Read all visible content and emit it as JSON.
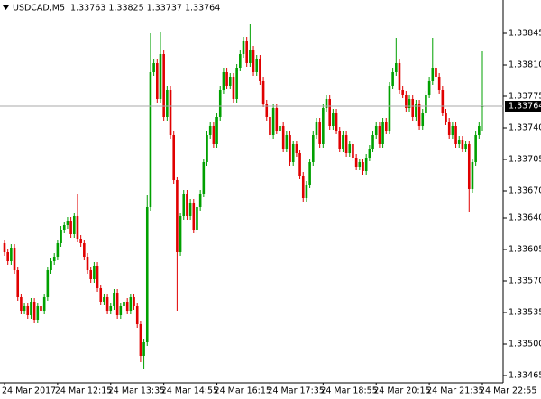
{
  "chart_data": {
    "type": "candlestick",
    "title": "USDCAD,M5  1.33763 1.33825 1.33737 1.33764",
    "up_color": "#00a000",
    "down_color": "#e00000",
    "ylim": [
      1.33457,
      1.33882
    ],
    "yticks": [
      1.33845,
      {
        "value": 1.3381,
        "label": "1.33810"
      },
      1.33775,
      {
        "value": 1.3374,
        "label": "1.33740"
      },
      1.33705,
      {
        "value": 1.3367,
        "label": "1.33670"
      },
      {
        "value": 1.3364,
        "label": "1.33640"
      },
      1.33605,
      {
        "value": 1.3357,
        "label": "1.33570"
      },
      1.33535,
      {
        "value": 1.335,
        "label": "1.33500"
      },
      1.33465
    ],
    "last_price": 1.33764,
    "categories": [
      "24 Mar 2017",
      null,
      null,
      null,
      null,
      null,
      null,
      null,
      null,
      null,
      null,
      null,
      null,
      null,
      null,
      null,
      "24 Mar 12:15",
      null,
      null,
      null,
      null,
      null,
      null,
      null,
      null,
      null,
      null,
      null,
      null,
      null,
      null,
      null,
      "24 Mar 13:35",
      null,
      null,
      null,
      null,
      null,
      null,
      null,
      null,
      null,
      null,
      null,
      null,
      null,
      null,
      null,
      "24 Mar 14:55",
      null,
      null,
      null,
      null,
      null,
      null,
      null,
      null,
      null,
      null,
      null,
      null,
      null,
      null,
      null,
      "24 Mar 16:15",
      null,
      null,
      null,
      null,
      null,
      null,
      null,
      null,
      null,
      null,
      null,
      null,
      null,
      null,
      null,
      "24 Mar 17:35",
      null,
      null,
      null,
      null,
      null,
      null,
      null,
      null,
      null,
      null,
      null,
      null,
      null,
      null,
      null,
      "24 Mar 18:55",
      null,
      null,
      null,
      null,
      null,
      null,
      null,
      null,
      null,
      null,
      null,
      null,
      null,
      null,
      null,
      "24 Mar 20:15",
      null,
      null,
      null,
      null,
      null,
      null,
      null,
      null,
      null,
      null,
      null,
      null,
      null,
      null,
      null,
      "24 Mar 21:35",
      null,
      null,
      null,
      null,
      null,
      null,
      null,
      null,
      null,
      null,
      null,
      null,
      null,
      null,
      null,
      "24 Mar 22:55"
    ],
    "open": [
      1.33612,
      1.33602,
      1.33592,
      1.33607,
      1.33582,
      1.33552,
      1.33537,
      1.33542,
      1.33532,
      1.33547,
      1.33527,
      1.33542,
      1.33537,
      1.33552,
      1.33582,
      1.33592,
      1.33597,
      1.33612,
      1.33627,
      1.33632,
      1.33637,
      1.33622,
      1.33642,
      1.33617,
      1.33612,
      1.33597,
      1.33582,
      1.33572,
      1.33587,
      1.33562,
      1.33547,
      1.33552,
      1.33537,
      1.33542,
      1.33557,
      1.33532,
      1.33542,
      1.33547,
      1.33537,
      1.33552,
      1.33542,
      1.33522,
      1.33487,
      1.33502,
      1.33652,
      1.33802,
      1.33812,
      1.33772,
      1.33822,
      1.33752,
      1.33782,
      1.33732,
      1.33682,
      1.33602,
      1.33642,
      1.33667,
      1.33642,
      1.33657,
      1.33627,
      1.33652,
      1.33667,
      1.33702,
      1.33732,
      1.33742,
      1.33722,
      1.33752,
      1.33782,
      1.33802,
      1.33787,
      1.33797,
      1.33772,
      1.33807,
      1.33822,
      1.33837,
      1.33812,
      1.33827,
      1.33802,
      1.33817,
      1.33792,
      1.33767,
      1.33752,
      1.33732,
      1.33762,
      1.33737,
      1.33742,
      1.33717,
      1.33732,
      1.33702,
      1.33722,
      1.33712,
      1.33687,
      1.33662,
      1.33677,
      1.33702,
      1.33732,
      1.33747,
      1.33722,
      1.33762,
      1.33772,
      1.33742,
      1.33757,
      1.33737,
      1.33717,
      1.33732,
      1.33712,
      1.33722,
      1.33707,
      1.33697,
      1.33702,
      1.33692,
      1.33707,
      1.33717,
      1.33732,
      1.33742,
      1.33722,
      1.33747,
      1.33737,
      1.33787,
      1.33802,
      1.33812,
      1.33782,
      1.33777,
      1.33762,
      1.33772,
      1.33752,
      1.33767,
      1.33742,
      1.33757,
      1.33777,
      1.33792,
      1.33807,
      1.33797,
      1.33782,
      1.33757,
      1.33747,
      1.33732,
      1.33742,
      1.33722,
      1.33727,
      1.33717,
      1.33722,
      1.33672,
      1.33702,
      1.33732,
      1.33763
    ],
    "high": [
      1.33616,
      1.33606,
      1.33611,
      1.33611,
      1.33586,
      1.33556,
      1.33546,
      1.33546,
      1.33551,
      1.33551,
      1.33546,
      1.33546,
      1.33556,
      1.33586,
      1.33596,
      1.33601,
      1.33616,
      1.33631,
      1.33636,
      1.33641,
      1.33641,
      1.33646,
      1.33667,
      1.33621,
      1.33616,
      1.33601,
      1.33586,
      1.33591,
      1.33591,
      1.33566,
      1.33556,
      1.33556,
      1.33546,
      1.33561,
      1.33561,
      1.33546,
      1.33551,
      1.33551,
      1.33556,
      1.33556,
      1.33546,
      1.33526,
      1.33506,
      1.33665,
      1.33845,
      1.33816,
      1.33816,
      1.33847,
      1.33826,
      1.33786,
      1.33786,
      1.33736,
      1.33686,
      1.33646,
      1.33671,
      1.33671,
      1.33661,
      1.33661,
      1.33656,
      1.33671,
      1.33706,
      1.33736,
      1.33746,
      1.33746,
      1.33756,
      1.33786,
      1.33806,
      1.33806,
      1.33801,
      1.33801,
      1.33811,
      1.33826,
      1.33841,
      1.33841,
      1.33855,
      1.33831,
      1.33821,
      1.33821,
      1.33796,
      1.33771,
      1.33756,
      1.33766,
      1.33766,
      1.33746,
      1.33746,
      1.33736,
      1.33736,
      1.33726,
      1.33726,
      1.33716,
      1.33691,
      1.33681,
      1.33706,
      1.33736,
      1.33751,
      1.33751,
      1.33766,
      1.33776,
      1.33776,
      1.33761,
      1.33761,
      1.33741,
      1.33736,
      1.33736,
      1.33726,
      1.33726,
      1.33711,
      1.33706,
      1.33706,
      1.33711,
      1.33721,
      1.33736,
      1.33746,
      1.33746,
      1.33751,
      1.33751,
      1.33791,
      1.33806,
      1.3384,
      1.33816,
      1.33786,
      1.33781,
      1.33776,
      1.33776,
      1.33771,
      1.33771,
      1.33761,
      1.33781,
      1.33796,
      1.3384,
      1.33811,
      1.33801,
      1.33786,
      1.33761,
      1.33751,
      1.33746,
      1.33746,
      1.33731,
      1.33731,
      1.33726,
      1.33726,
      1.33706,
      1.33736,
      1.33746,
      1.33825
    ],
    "low": [
      1.33598,
      1.33588,
      1.33588,
      1.33578,
      1.33548,
      1.33533,
      1.33533,
      1.33528,
      1.33528,
      1.33523,
      1.33523,
      1.33533,
      1.33533,
      1.33548,
      1.33578,
      1.33588,
      1.33593,
      1.33608,
      1.33623,
      1.33628,
      1.33618,
      1.33618,
      1.33613,
      1.33608,
      1.33593,
      1.33578,
      1.33568,
      1.33568,
      1.33558,
      1.33543,
      1.33543,
      1.33533,
      1.33533,
      1.33538,
      1.33528,
      1.33528,
      1.33538,
      1.33533,
      1.33533,
      1.33538,
      1.33518,
      1.3348,
      1.33472,
      1.33498,
      1.33648,
      1.33798,
      1.33768,
      1.33768,
      1.33748,
      1.33748,
      1.33728,
      1.33678,
      1.33537,
      1.33598,
      1.33638,
      1.33638,
      1.33638,
      1.33623,
      1.33623,
      1.33648,
      1.33663,
      1.33698,
      1.33728,
      1.33718,
      1.33718,
      1.33748,
      1.33778,
      1.33783,
      1.33783,
      1.33768,
      1.33768,
      1.33803,
      1.33818,
      1.33808,
      1.33808,
      1.33798,
      1.33798,
      1.33788,
      1.33763,
      1.33748,
      1.33728,
      1.33728,
      1.33733,
      1.33733,
      1.33713,
      1.33713,
      1.33698,
      1.33698,
      1.33708,
      1.33683,
      1.33658,
      1.33658,
      1.33673,
      1.33698,
      1.33728,
      1.33718,
      1.33718,
      1.33758,
      1.33738,
      1.33738,
      1.33733,
      1.33713,
      1.33713,
      1.33708,
      1.33708,
      1.33703,
      1.33693,
      1.33693,
      1.33688,
      1.33688,
      1.33703,
      1.33713,
      1.33728,
      1.33718,
      1.33718,
      1.33733,
      1.33733,
      1.33783,
      1.33798,
      1.33778,
      1.33773,
      1.33758,
      1.33758,
      1.33748,
      1.33748,
      1.33738,
      1.33738,
      1.33753,
      1.33773,
      1.33788,
      1.33793,
      1.33778,
      1.33753,
      1.33743,
      1.33728,
      1.33728,
      1.33718,
      1.33718,
      1.33713,
      1.33713,
      1.33647,
      1.33668,
      1.33698,
      1.33728,
      1.33737
    ],
    "close": [
      1.33602,
      1.33592,
      1.33607,
      1.33582,
      1.33552,
      1.33537,
      1.33542,
      1.33532,
      1.33547,
      1.33527,
      1.33542,
      1.33537,
      1.33552,
      1.33582,
      1.33592,
      1.33597,
      1.33612,
      1.33627,
      1.33632,
      1.33637,
      1.33622,
      1.33642,
      1.33617,
      1.33612,
      1.33597,
      1.33582,
      1.33572,
      1.33587,
      1.33562,
      1.33547,
      1.33552,
      1.33537,
      1.33542,
      1.33557,
      1.33532,
      1.33542,
      1.33547,
      1.33537,
      1.33552,
      1.33542,
      1.33522,
      1.33487,
      1.33502,
      1.33652,
      1.33802,
      1.33812,
      1.33772,
      1.33822,
      1.33752,
      1.33782,
      1.33732,
      1.33682,
      1.33602,
      1.33642,
      1.33667,
      1.33642,
      1.33657,
      1.33627,
      1.33652,
      1.33667,
      1.33702,
      1.33732,
      1.33742,
      1.33722,
      1.33752,
      1.33782,
      1.33802,
      1.33787,
      1.33797,
      1.33772,
      1.33807,
      1.33822,
      1.33837,
      1.33812,
      1.33827,
      1.33802,
      1.33817,
      1.33792,
      1.33767,
      1.33752,
      1.33732,
      1.33762,
      1.33737,
      1.33742,
      1.33717,
      1.33732,
      1.33702,
      1.33722,
      1.33712,
      1.33687,
      1.33662,
      1.33677,
      1.33702,
      1.33732,
      1.33747,
      1.33722,
      1.33762,
      1.33772,
      1.33742,
      1.33757,
      1.33737,
      1.33717,
      1.33732,
      1.33712,
      1.33722,
      1.33707,
      1.33697,
      1.33702,
      1.33692,
      1.33707,
      1.33717,
      1.33732,
      1.33742,
      1.33722,
      1.33747,
      1.33737,
      1.33787,
      1.33802,
      1.33812,
      1.33782,
      1.33777,
      1.33762,
      1.33772,
      1.33752,
      1.33767,
      1.33742,
      1.33757,
      1.33777,
      1.33792,
      1.33807,
      1.33797,
      1.33782,
      1.33757,
      1.33747,
      1.33732,
      1.33742,
      1.33722,
      1.33727,
      1.33717,
      1.33722,
      1.33672,
      1.33702,
      1.33732,
      1.33742,
      1.33764
    ]
  }
}
